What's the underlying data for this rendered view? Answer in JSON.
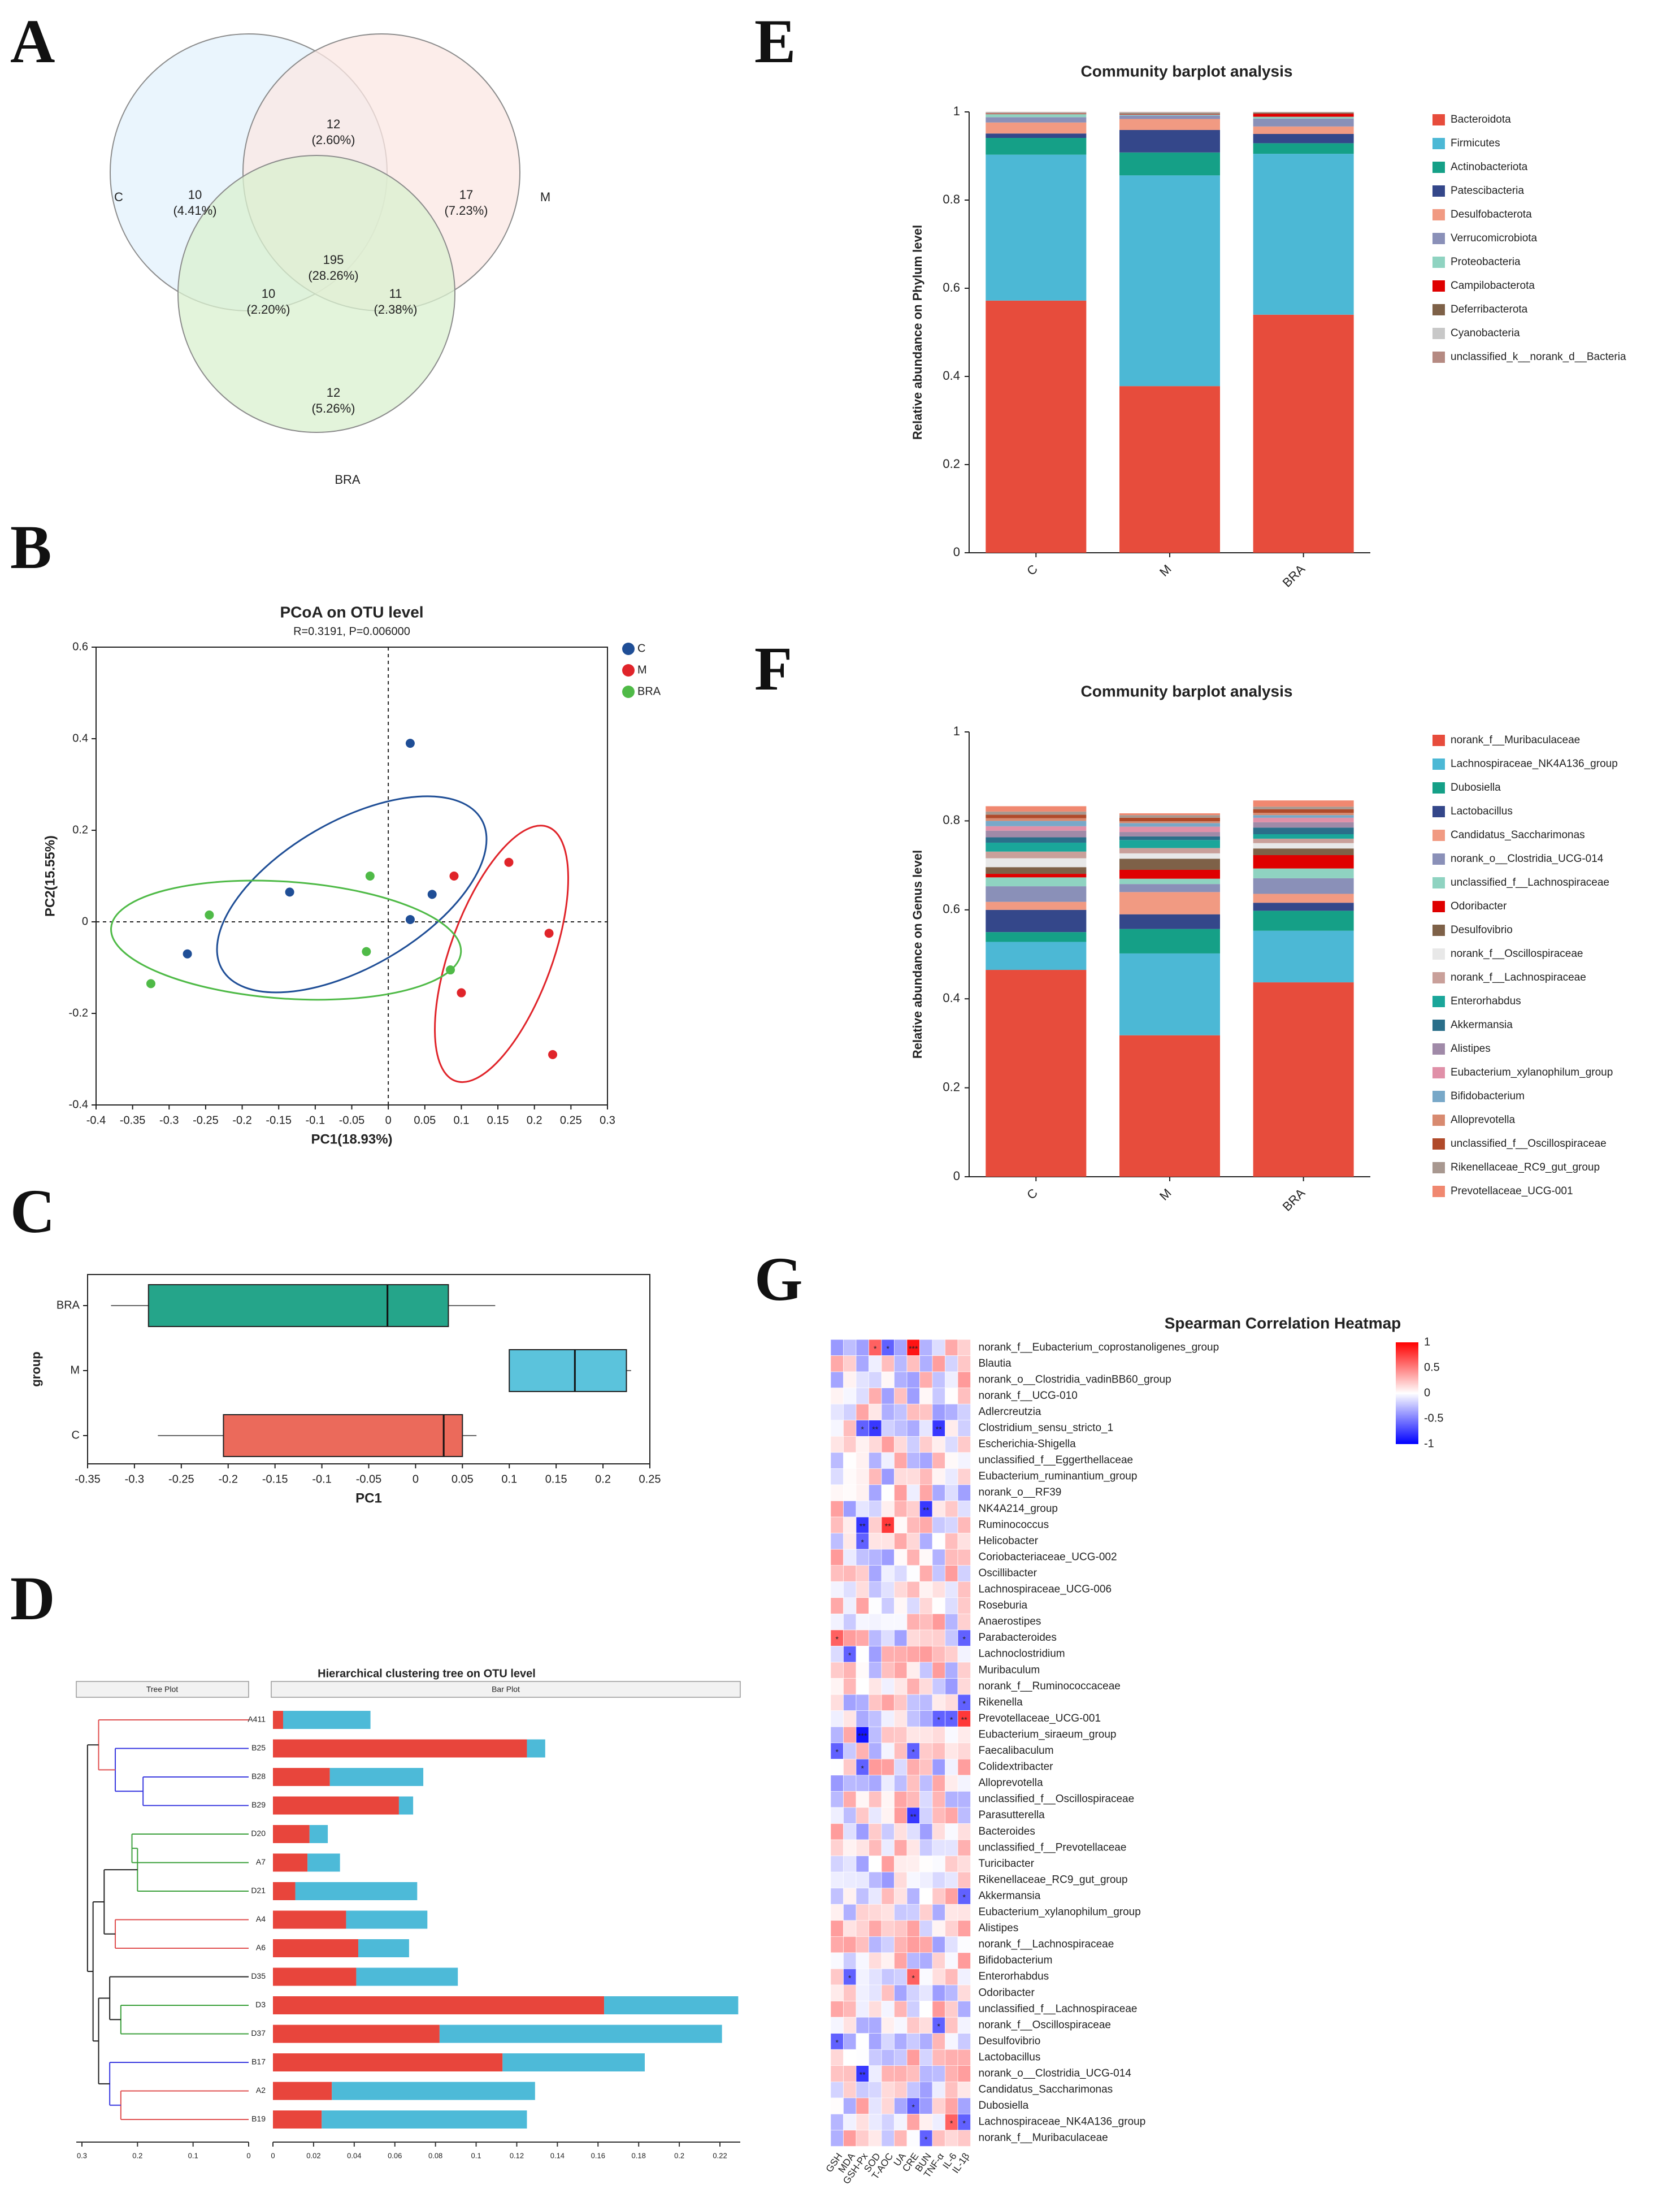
{
  "panel_labels": [
    "A",
    "B",
    "C",
    "D",
    "E",
    "F",
    "G"
  ],
  "chart_data": [
    {
      "type": "venn",
      "panel": "A",
      "sets": [
        "C",
        "M",
        "BRA"
      ],
      "colors": {
        "C": "#e3f2fc",
        "M": "#fbe7e3",
        "BRA": "#d9f0cf"
      },
      "regions": [
        {
          "label": "10",
          "pct": "(4.41%)"
        },
        {
          "label": "12",
          "pct": "(2.60%)"
        },
        {
          "label": "17",
          "pct": "(7.23%)"
        },
        {
          "label": "195",
          "pct": "(28.26%)"
        },
        {
          "label": "10",
          "pct": "(2.20%)"
        },
        {
          "label": "11",
          "pct": "(2.38%)"
        },
        {
          "label": "12",
          "pct": "(5.26%)"
        }
      ]
    },
    {
      "type": "scatter",
      "panel": "B",
      "title": "PCoA on OTU level",
      "subtitle": "R=0.3191, P=0.006000",
      "xlabel": "PC1(18.93%)",
      "ylabel": "PC2(15.55%)",
      "xlim": [
        -0.4,
        0.3
      ],
      "ylim": [
        -0.4,
        0.6
      ],
      "xticks": [
        "-0.4",
        "-0.35",
        "-0.3",
        "-0.25",
        "-0.2",
        "-0.15",
        "-0.1",
        "-0.05",
        "0",
        "0.05",
        "0.1",
        "0.15",
        "0.2",
        "0.25",
        "0.3"
      ],
      "yticks": [
        "-0.4",
        "-0.2",
        "0",
        "0.2",
        "0.4",
        "0.6"
      ],
      "series": [
        {
          "name": "C",
          "color": "#1f4e96",
          "points": [
            [
              0.03,
              0.39
            ],
            [
              -0.135,
              0.065
            ],
            [
              0.06,
              0.06
            ],
            [
              0.03,
              0.005
            ],
            [
              -0.275,
              -0.07
            ]
          ],
          "ellipse": {
            "cx": -0.05,
            "cy": 0.06,
            "rx": 0.205,
            "ry": 0.1,
            "angle": -30
          }
        },
        {
          "name": "M",
          "color": "#e0242a",
          "points": [
            [
              0.165,
              0.13
            ],
            [
              0.09,
              0.1
            ],
            [
              0.22,
              -0.025
            ],
            [
              0.1,
              -0.155
            ],
            [
              0.225,
              -0.29
            ]
          ],
          "ellipse": {
            "cx": 0.155,
            "cy": -0.07,
            "rx": 0.185,
            "ry": 0.07,
            "angle": -70
          }
        },
        {
          "name": "BRA",
          "color": "#4fba47",
          "points": [
            [
              -0.025,
              0.1
            ],
            [
              -0.245,
              0.015
            ],
            [
              -0.03,
              -0.065
            ],
            [
              0.085,
              -0.105
            ],
            [
              -0.325,
              -0.135
            ]
          ],
          "ellipse": {
            "cx": -0.14,
            "cy": -0.04,
            "rx": 0.24,
            "ry": 0.08,
            "angle": 4
          }
        }
      ]
    },
    {
      "type": "box",
      "panel": "C",
      "xlabel": "PC1",
      "ylabel": "group",
      "xlim": [
        -0.35,
        0.25
      ],
      "xticks": [
        "-0.35",
        "-0.3",
        "-0.25",
        "-0.2",
        "-0.15",
        "-0.1",
        "-0.05",
        "0",
        "0.05",
        "0.1",
        "0.15",
        "0.2",
        "0.25"
      ],
      "groups": [
        {
          "name": "BRA",
          "color": "#25a58a",
          "min": -0.325,
          "q1": -0.285,
          "median": -0.03,
          "q3": 0.035,
          "max": 0.085
        },
        {
          "name": "M",
          "color": "#5bc3dc",
          "min": 0.1,
          "q1": 0.1,
          "median": 0.17,
          "q3": 0.225,
          "max": 0.23
        },
        {
          "name": "C",
          "color": "#eb6a5b",
          "min": -0.275,
          "q1": -0.205,
          "median": 0.03,
          "q3": 0.05,
          "max": 0.065
        }
      ]
    },
    {
      "type": "bar",
      "panel": "D",
      "title": "Hierarchical clustering tree on OTU level",
      "tree_label": "Tree Plot",
      "bar_label": "Bar Plot",
      "tree_ticks": [
        "0.3",
        "0.2",
        "0.1",
        "0"
      ],
      "xticks": [
        "0",
        "0.02",
        "0.04",
        "0.06",
        "0.08",
        "0.1",
        "0.12",
        "0.14",
        "0.16",
        "0.18",
        "0.2",
        "0.22"
      ],
      "xlim": [
        0,
        0.23
      ],
      "categories": [
        "A411",
        "B25",
        "B28",
        "B29",
        "D20",
        "A7",
        "D21",
        "A4",
        "A6",
        "D35",
        "D3",
        "D37",
        "B17",
        "A2",
        "B19"
      ],
      "series": [
        {
          "name": "red",
          "color": "#e8453c",
          "values": [
            0.005,
            0.125,
            0.028,
            0.062,
            0.018,
            0.017,
            0.011,
            0.036,
            0.042,
            0.041,
            0.163,
            0.082,
            0.113,
            0.029,
            0.024
          ]
        },
        {
          "name": "blue",
          "color": "#4dbad8",
          "values": [
            0.043,
            0.009,
            0.046,
            0.007,
            0.009,
            0.016,
            0.06,
            0.04,
            0.025,
            0.05,
            0.066,
            0.139,
            0.07,
            0.1,
            0.101
          ]
        }
      ]
    },
    {
      "type": "bar",
      "panel": "E",
      "title": "Community barplot analysis",
      "ylabel": "Relative abundance on Phylum level",
      "ylim": [
        0,
        1
      ],
      "yticks": [
        "0",
        "0.2",
        "0.4",
        "0.6",
        "0.8",
        "1"
      ],
      "categories": [
        "C",
        "M",
        "BRA"
      ],
      "series": [
        {
          "name": "Bacteroidota",
          "color": "#e74c3c",
          "values": [
            0.572,
            0.378,
            0.54
          ]
        },
        {
          "name": "Firmicutes",
          "color": "#4cb8d5",
          "values": [
            0.331,
            0.478,
            0.365
          ]
        },
        {
          "name": "Actinobacteriota",
          "color": "#15a087",
          "values": [
            0.038,
            0.052,
            0.024
          ]
        },
        {
          "name": "Patescibacteria",
          "color": "#34478a",
          "values": [
            0.01,
            0.051,
            0.021
          ]
        },
        {
          "name": "Desulfobacterota",
          "color": "#f19a82",
          "values": [
            0.025,
            0.025,
            0.017
          ]
        },
        {
          "name": "Verrucomicrobiota",
          "color": "#8a90b8",
          "values": [
            0.012,
            0.008,
            0.018
          ]
        },
        {
          "name": "Proteobacteria",
          "color": "#8fd3c1",
          "values": [
            0.007,
            0.002,
            0.004
          ]
        },
        {
          "name": "Campilobacterota",
          "color": "#df0000",
          "values": [
            0.001,
            0.001,
            0.007
          ]
        },
        {
          "name": "Deferribacterota",
          "color": "#7e6148",
          "values": [
            0.001,
            0.002,
            0.002
          ]
        },
        {
          "name": "Cyanobacteria",
          "color": "#c8c8c8",
          "values": [
            0.002,
            0.002,
            0.001
          ]
        },
        {
          "name": "unclassified_k__norank_d__Bacteria",
          "color": "#b58a82",
          "values": [
            0.001,
            0.001,
            0.001
          ]
        }
      ]
    },
    {
      "type": "bar",
      "panel": "F",
      "title": "Community barplot analysis",
      "ylabel": "Relative abundance on Genus level",
      "ylim": [
        0,
        1
      ],
      "yticks": [
        "0",
        "0.2",
        "0.4",
        "0.6",
        "0.8",
        "1"
      ],
      "categories": [
        "C",
        "M",
        "BRA"
      ],
      "series": [
        {
          "name": "norank_f__Muribaculaceae",
          "color": "#e74c3c",
          "values": [
            0.465,
            0.318,
            0.437
          ]
        },
        {
          "name": "Lachnospiraceae_NK4A136_group",
          "color": "#4cb8d5",
          "values": [
            0.063,
            0.184,
            0.116
          ]
        },
        {
          "name": "Dubosiella",
          "color": "#15a087",
          "values": [
            0.022,
            0.055,
            0.045
          ]
        },
        {
          "name": "Lactobacillus",
          "color": "#34478a",
          "values": [
            0.05,
            0.033,
            0.018
          ]
        },
        {
          "name": "Candidatus_Saccharimonas",
          "color": "#f19a82",
          "values": [
            0.018,
            0.05,
            0.02
          ]
        },
        {
          "name": "norank_o__Clostridia_UCG-014",
          "color": "#8a90b8",
          "values": [
            0.035,
            0.018,
            0.035
          ]
        },
        {
          "name": "unclassified_f__Lachnospiraceae",
          "color": "#8fd3c1",
          "values": [
            0.02,
            0.012,
            0.022
          ]
        },
        {
          "name": "Odoribacter",
          "color": "#df0000",
          "values": [
            0.008,
            0.02,
            0.03
          ]
        },
        {
          "name": "Desulfovibrio",
          "color": "#7e6148",
          "values": [
            0.015,
            0.025,
            0.015
          ]
        },
        {
          "name": "norank_f__Oscillospiraceae",
          "color": "#e8e8e8",
          "values": [
            0.02,
            0.012,
            0.012
          ]
        },
        {
          "name": "norank_f__Lachnospiraceae",
          "color": "#c9a09a",
          "values": [
            0.015,
            0.012,
            0.01
          ]
        },
        {
          "name": "Enterorhabdus",
          "color": "#1aa69a",
          "values": [
            0.02,
            0.018,
            0.01
          ]
        },
        {
          "name": "Akkermansia",
          "color": "#2a6f8a",
          "values": [
            0.012,
            0.008,
            0.015
          ]
        },
        {
          "name": "Alistipes",
          "color": "#a08aa8",
          "values": [
            0.015,
            0.01,
            0.012
          ]
        },
        {
          "name": "Eubacterium_xylanophilum_group",
          "color": "#e090a8",
          "values": [
            0.01,
            0.012,
            0.01
          ]
        },
        {
          "name": "Bifidobacterium",
          "color": "#78a8c8",
          "values": [
            0.012,
            0.008,
            0.006
          ]
        },
        {
          "name": "Alloprevotella",
          "color": "#d88a70",
          "values": [
            0.006,
            0.004,
            0.005
          ]
        },
        {
          "name": "unclassified_f__Oscillospiraceae",
          "color": "#b04a2a",
          "values": [
            0.008,
            0.008,
            0.008
          ]
        },
        {
          "name": "Rikenellaceae_RC9_gut_group",
          "color": "#a89890",
          "values": [
            0.007,
            0.006,
            0.006
          ]
        },
        {
          "name": "Prevotellaceae_UCG-001",
          "color": "#f08870",
          "values": [
            0.012,
            0.004,
            0.014
          ]
        }
      ]
    },
    {
      "type": "heatmap",
      "panel": "G",
      "title": "Spearman Correlation Heatmap",
      "columns": [
        "GSH",
        "MDA",
        "GSH-Px",
        "SOD",
        "T-AOC",
        "UA",
        "CRE",
        "BUN",
        "TNF-α",
        "IL-6",
        "IL-1β"
      ],
      "rows": [
        "norank_f__Eubacterium_coprostanoligenes_group",
        "Blautia",
        "norank_o__Clostridia_vadinBB60_group",
        "norank_f__UCG-010",
        "Adlercreutzia",
        "Clostridium_sensu_stricto_1",
        "Escherichia-Shigella",
        "unclassified_f__Eggerthellaceae",
        "Eubacterium_ruminantium_group",
        "norank_o__RF39",
        "NK4A214_group",
        "Ruminococcus",
        "Helicobacter",
        "Coriobacteriaceae_UCG-002",
        "Oscillibacter",
        "Lachnospiraceae_UCG-006",
        "Roseburia",
        "Anaerostipes",
        "Parabacteroides",
        "Lachnoclostridium",
        "Muribaculum",
        "norank_f__Ruminococcaceae",
        "Rikenella",
        "Prevotellaceae_UCG-001",
        "Eubacterium_siraeum_group",
        "Faecalibaculum",
        "Colidextribacter",
        "Alloprevotella",
        "unclassified_f__Oscillospiraceae",
        "Parasutterella",
        "Bacteroides",
        "unclassified_f__Prevotellaceae",
        "Turicibacter",
        "Rikenellaceae_RC9_gut_group",
        "Akkermansia",
        "Eubacterium_xylanophilum_group",
        "Alistipes",
        "norank_f__Lachnospiraceae",
        "Bifidobacterium",
        "Enterorhabdus",
        "Odoribacter",
        "unclassified_f__Lachnospiraceae",
        "norank_f__Oscillospiraceae",
        "Desulfovibrio",
        "Lactobacillus",
        "norank_o__Clostridia_UCG-014",
        "Candidatus_Saccharimonas",
        "Dubosiella",
        "Lachnospiraceae_NK4A136_group",
        "norank_f__Muribaculaceae"
      ],
      "legend": {
        "max": "1",
        "mid_hi": "0.5",
        "zero": "0",
        "mid_lo": "-0.5",
        "min": "-1"
      },
      "significant": [
        {
          "row": 0,
          "col": 3,
          "mark": "*"
        },
        {
          "row": 0,
          "col": 4,
          "mark": "*"
        },
        {
          "row": 0,
          "col": 6,
          "mark": "***"
        },
        {
          "row": 5,
          "col": 2,
          "mark": "*"
        },
        {
          "row": 5,
          "col": 3,
          "mark": "**"
        },
        {
          "row": 5,
          "col": 8,
          "mark": "**"
        },
        {
          "row": 10,
          "col": 7,
          "mark": "**"
        },
        {
          "row": 11,
          "col": 2,
          "mark": "**"
        },
        {
          "row": 11,
          "col": 4,
          "mark": "**"
        },
        {
          "row": 12,
          "col": 2,
          "mark": "*"
        },
        {
          "row": 18,
          "col": 0,
          "mark": "*"
        },
        {
          "row": 18,
          "col": 10,
          "mark": "*"
        },
        {
          "row": 19,
          "col": 1,
          "mark": "*"
        },
        {
          "row": 22,
          "col": 10,
          "mark": "*"
        },
        {
          "row": 23,
          "col": 8,
          "mark": "*"
        },
        {
          "row": 23,
          "col": 9,
          "mark": "*"
        },
        {
          "row": 23,
          "col": 10,
          "mark": "**"
        },
        {
          "row": 24,
          "col": 2,
          "mark": "***"
        },
        {
          "row": 25,
          "col": 0,
          "mark": "*"
        },
        {
          "row": 25,
          "col": 6,
          "mark": "*"
        },
        {
          "row": 26,
          "col": 2,
          "mark": "*"
        },
        {
          "row": 29,
          "col": 6,
          "mark": "**"
        },
        {
          "row": 34,
          "col": 10,
          "mark": "*"
        },
        {
          "row": 39,
          "col": 1,
          "mark": "*"
        },
        {
          "row": 39,
          "col": 6,
          "mark": "*"
        },
        {
          "row": 42,
          "col": 8,
          "mark": "*"
        },
        {
          "row": 43,
          "col": 0,
          "mark": "*"
        },
        {
          "row": 45,
          "col": 2,
          "mark": "**"
        },
        {
          "row": 47,
          "col": 6,
          "mark": "*"
        },
        {
          "row": 48,
          "col": 9,
          "mark": "*"
        },
        {
          "row": 48,
          "col": 10,
          "mark": "*"
        },
        {
          "row": 49,
          "col": 7,
          "mark": "*"
        }
      ]
    }
  ]
}
